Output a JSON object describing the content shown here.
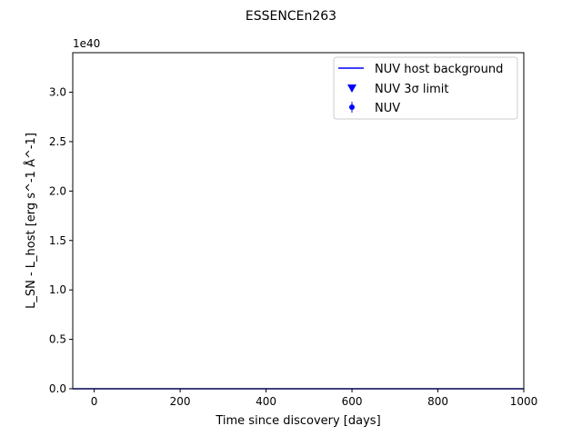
{
  "chart_data": {
    "type": "line",
    "title": "ESSENCEn263",
    "xlabel": "Time since discovery [days]",
    "ylabel": "L_SN - L_host [erg s^-1 Å^-1]",
    "y_offset_label": "1e40",
    "xlim": [
      -50,
      1000
    ],
    "ylim": [
      0,
      3.4
    ],
    "x_ticks": [
      0,
      200,
      400,
      600,
      800,
      1000
    ],
    "y_ticks": [
      0.0,
      0.5,
      1.0,
      1.5,
      2.0,
      2.5,
      3.0
    ],
    "x_tick_labels": [
      "0",
      "200",
      "400",
      "600",
      "800",
      "1000"
    ],
    "y_tick_labels": [
      "0.0",
      "0.5",
      "1.0",
      "1.5",
      "2.0",
      "2.5",
      "3.0"
    ],
    "grid": false,
    "legend_position": "top-right",
    "series": [
      {
        "name": "NUV host background",
        "kind": "line",
        "color": "#0000ff",
        "x": [
          -50,
          1000
        ],
        "y": [
          0,
          0
        ]
      },
      {
        "name": "NUV 3σ limit",
        "kind": "marker-triangle-down",
        "color": "#0000ff",
        "x": [],
        "y": []
      },
      {
        "name": "NUV",
        "kind": "errorbar-point",
        "color": "#0000ff",
        "x": [],
        "y": []
      }
    ]
  }
}
